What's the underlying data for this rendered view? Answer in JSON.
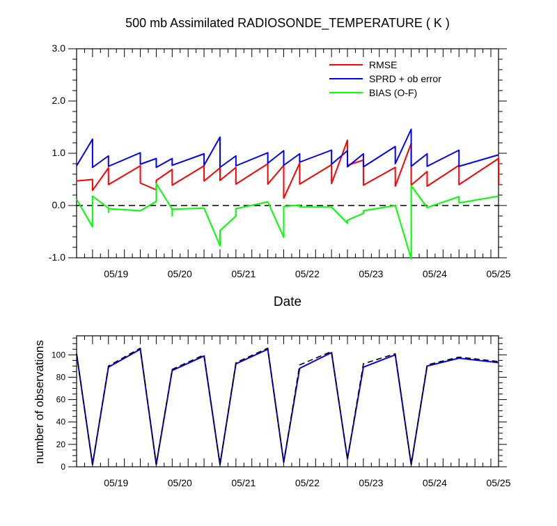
{
  "chart_data": [
    {
      "type": "line",
      "title": "500 mb Assimilated RADIOSONDE_TEMPERATURE ( K )",
      "xlabel": "Date",
      "ylabel": "",
      "xlim": [
        0,
        6.62
      ],
      "ylim": [
        -1.0,
        3.0
      ],
      "x_tick_labels": [
        {
          "x": 0.62,
          "label": "05/19"
        },
        {
          "x": 1.62,
          "label": "05/20"
        },
        {
          "x": 2.62,
          "label": "05/21"
        },
        {
          "x": 3.62,
          "label": "05/22"
        },
        {
          "x": 4.62,
          "label": "05/23"
        },
        {
          "x": 5.62,
          "label": "05/24"
        },
        {
          "x": 6.62,
          "label": "05/25"
        }
      ],
      "y_ticks": [
        -1.0,
        0.0,
        1.0,
        2.0,
        3.0
      ],
      "y_tick_labels": [
        "-1.0",
        "0.0",
        "1.0",
        "2.0",
        "3.0"
      ],
      "zero_line": {
        "y": 0.0,
        "style": "dashed",
        "color": "#000000"
      },
      "legend_position": "top-right",
      "series": [
        {
          "name": "RMSE",
          "color": "#ff0000",
          "points": [
            [
              0,
              0.47
            ],
            [
              0.25,
              0.5
            ],
            [
              0.25,
              0.29
            ],
            [
              0.5,
              0.72
            ],
            [
              0.5,
              0.4
            ],
            [
              1.0,
              0.76
            ],
            [
              1.0,
              0.43
            ],
            [
              1.25,
              0.3
            ],
            [
              1.25,
              0.48
            ],
            [
              1.5,
              0.69
            ],
            [
              1.5,
              0.39
            ],
            [
              2.0,
              0.76
            ],
            [
              2.0,
              0.47
            ],
            [
              2.25,
              0.72
            ],
            [
              2.25,
              0.48
            ],
            [
              2.5,
              0.73
            ],
            [
              2.5,
              0.41
            ],
            [
              3.0,
              0.8
            ],
            [
              3.0,
              0.41
            ],
            [
              3.25,
              0.77
            ],
            [
              3.25,
              0.14
            ],
            [
              3.5,
              0.81
            ],
            [
              3.5,
              0.41
            ],
            [
              4.0,
              0.78
            ],
            [
              4.0,
              0.42
            ],
            [
              4.25,
              1.25
            ],
            [
              4.25,
              0.77
            ],
            [
              4.5,
              0.87
            ],
            [
              4.5,
              0.39
            ],
            [
              5.0,
              0.73
            ],
            [
              5.0,
              0.37
            ],
            [
              5.25,
              1.19
            ],
            [
              5.25,
              0.39
            ],
            [
              5.5,
              0.65
            ],
            [
              5.5,
              0.37
            ],
            [
              6.0,
              0.77
            ],
            [
              6.0,
              0.4
            ],
            [
              6.62,
              0.9
            ],
            [
              6.62,
              0.4
            ]
          ]
        },
        {
          "name": "SPRD + ob error",
          "color": "#0000ff",
          "points": [
            [
              0,
              0.76
            ],
            [
              0.25,
              1.27
            ],
            [
              0.25,
              0.73
            ],
            [
              0.5,
              0.95
            ],
            [
              0.5,
              0.75
            ],
            [
              1.0,
              1.01
            ],
            [
              1.0,
              0.79
            ],
            [
              1.25,
              0.9
            ],
            [
              1.25,
              0.73
            ],
            [
              1.5,
              0.9
            ],
            [
              1.5,
              0.77
            ],
            [
              2.0,
              0.99
            ],
            [
              2.0,
              0.77
            ],
            [
              2.25,
              1.31
            ],
            [
              2.25,
              0.73
            ],
            [
              2.5,
              0.95
            ],
            [
              2.5,
              0.76
            ],
            [
              3.0,
              1.01
            ],
            [
              3.0,
              0.81
            ],
            [
              3.25,
              1.05
            ],
            [
              3.25,
              0.77
            ],
            [
              3.5,
              0.99
            ],
            [
              3.5,
              0.83
            ],
            [
              4.0,
              1.06
            ],
            [
              4.0,
              0.79
            ],
            [
              4.25,
              1.05
            ],
            [
              4.25,
              0.74
            ],
            [
              4.5,
              0.99
            ],
            [
              4.5,
              0.74
            ],
            [
              5.0,
              1.13
            ],
            [
              5.0,
              0.8
            ],
            [
              5.25,
              1.46
            ],
            [
              5.25,
              0.75
            ],
            [
              5.5,
              0.99
            ],
            [
              5.5,
              0.75
            ],
            [
              6.0,
              1.06
            ],
            [
              6.0,
              0.75
            ],
            [
              6.62,
              0.97
            ]
          ]
        },
        {
          "name": "BIAS (O-F)",
          "color": "#00ff00",
          "points": [
            [
              0,
              0.12
            ],
            [
              0.25,
              -0.41
            ],
            [
              0.25,
              0.18
            ],
            [
              0.5,
              -0.05
            ],
            [
              0.5,
              -0.13
            ],
            [
              0.5,
              -0.06
            ],
            [
              1.0,
              -0.1
            ],
            [
              1.25,
              0.08
            ],
            [
              1.25,
              0.42
            ],
            [
              1.5,
              -0.07
            ],
            [
              1.5,
              -0.2
            ],
            [
              1.5,
              -0.07
            ],
            [
              2.0,
              -0.05
            ],
            [
              2.25,
              -0.77
            ],
            [
              2.25,
              -0.48
            ],
            [
              2.5,
              -0.2
            ],
            [
              2.5,
              -0.06
            ],
            [
              3.0,
              0.07
            ],
            [
              3.25,
              -0.61
            ],
            [
              3.25,
              -0.02
            ],
            [
              3.5,
              0.01
            ],
            [
              3.5,
              -0.03
            ],
            [
              4.0,
              -0.03
            ],
            [
              4.25,
              -0.34
            ],
            [
              4.25,
              -0.28
            ],
            [
              4.5,
              -0.15
            ],
            [
              4.5,
              -0.1
            ],
            [
              5.0,
              0.0
            ],
            [
              5.25,
              -1.02
            ],
            [
              5.25,
              0.38
            ],
            [
              5.5,
              -0.04
            ],
            [
              6.0,
              0.17
            ],
            [
              6.0,
              0.05
            ],
            [
              6.62,
              0.18
            ]
          ]
        }
      ]
    },
    {
      "type": "line",
      "title": "",
      "xlabel": "",
      "ylabel": "number of observations",
      "xlim": [
        0,
        6.62
      ],
      "ylim": [
        0,
        117
      ],
      "x_tick_labels": [
        {
          "x": 0.62,
          "label": "05/19"
        },
        {
          "x": 1.62,
          "label": "05/20"
        },
        {
          "x": 2.62,
          "label": "05/21"
        },
        {
          "x": 3.62,
          "label": "05/22"
        },
        {
          "x": 4.62,
          "label": "05/23"
        },
        {
          "x": 5.62,
          "label": "05/24"
        },
        {
          "x": 6.62,
          "label": "05/25"
        }
      ],
      "y_ticks": [
        0,
        20,
        40,
        60,
        80,
        100
      ],
      "y_tick_labels": [
        "0",
        "20",
        "40",
        "60",
        "80",
        "100"
      ],
      "series": [
        {
          "color": "#0000ff",
          "style": "solid",
          "points": [
            [
              0,
              101
            ],
            [
              0.25,
              2
            ],
            [
              0.5,
              89
            ],
            [
              1.0,
              105
            ],
            [
              1.25,
              2
            ],
            [
              1.5,
              86
            ],
            [
              2.0,
              99
            ],
            [
              2.25,
              2
            ],
            [
              2.5,
              92
            ],
            [
              3.0,
              105
            ],
            [
              3.25,
              4
            ],
            [
              3.5,
              88
            ],
            [
              4.0,
              102
            ],
            [
              4.25,
              7
            ],
            [
              4.5,
              89
            ],
            [
              5.0,
              100
            ],
            [
              5.25,
              2
            ],
            [
              5.5,
              90
            ],
            [
              6.0,
              97
            ],
            [
              6.62,
              93
            ]
          ]
        },
        {
          "color": "#000000",
          "style": "dashed",
          "points": [
            [
              0,
              101
            ],
            [
              0.25,
              2
            ],
            [
              0.5,
              90
            ],
            [
              1.0,
              106
            ],
            [
              1.25,
              2
            ],
            [
              1.5,
              87
            ],
            [
              2.0,
              100
            ],
            [
              2.25,
              2
            ],
            [
              2.5,
              93
            ],
            [
              3.0,
              106
            ],
            [
              3.25,
              4
            ],
            [
              3.5,
              91
            ],
            [
              4.0,
              103
            ],
            [
              4.25,
              7
            ],
            [
              4.5,
              92
            ],
            [
              5.0,
              101
            ],
            [
              5.25,
              2
            ],
            [
              5.5,
              91
            ],
            [
              6.0,
              98
            ],
            [
              6.62,
              94
            ]
          ]
        }
      ]
    }
  ]
}
